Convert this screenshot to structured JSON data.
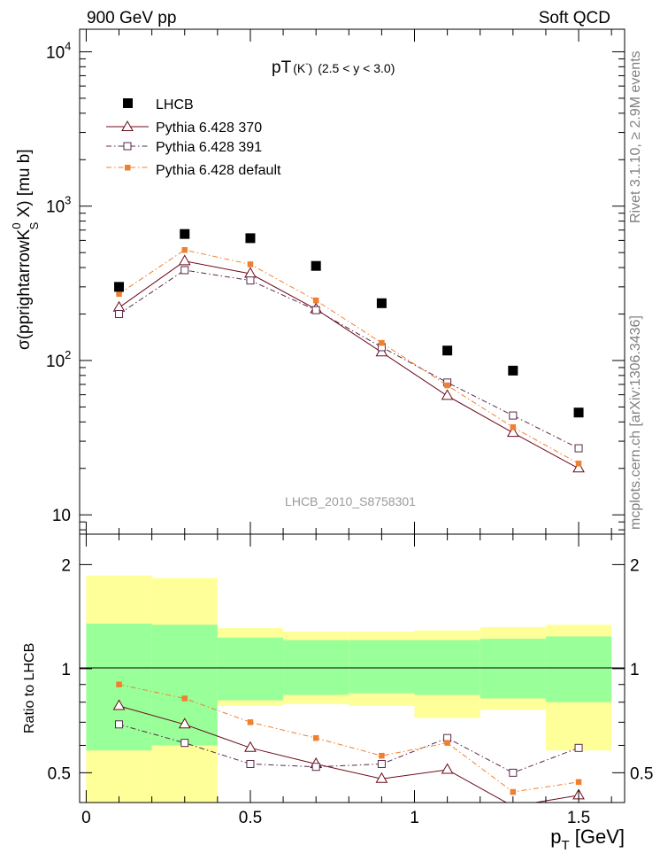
{
  "header": {
    "left": "900 GeV pp",
    "right": "Soft QCD"
  },
  "side_labels": {
    "upper": "Rivet 3.1.10, ≥ 2.9M events",
    "lower": "mcplots.cern.ch [arXiv:1306.3436]"
  },
  "colors": {
    "lhcb": "#000000",
    "p370": "#6b0a1a",
    "p391": "#5a2a4a",
    "pdef": "#f08030",
    "band_yellow": "#ffff99",
    "band_green": "#99ff99"
  },
  "chart_data": [
    {
      "type": "line",
      "panel": "main",
      "title_main": "pT",
      "title_particle": "(K",
      "title_sup": "-",
      "title_rest": ")",
      "title_range": "(2.5 < y < 3.0)",
      "ylabel_parts": {
        "pre": "σ(pprightarrowK",
        "sup": "0",
        "sub": "S",
        "post": " X) [mu b]"
      },
      "yscale": "log",
      "ylim": [
        7.5,
        14000
      ],
      "xlim": [
        -0.02,
        1.64
      ],
      "yticks": [
        10,
        100,
        1000,
        10000
      ],
      "ytick_labels": [
        {
          "base": "10",
          "exp": ""
        },
        {
          "base": "10",
          "exp": "2"
        },
        {
          "base": "10",
          "exp": "3"
        },
        {
          "base": "10",
          "exp": "4"
        }
      ],
      "watermark": "LHCB_2010_S8758301",
      "legend_position": "top-left",
      "x": [
        0.1,
        0.3,
        0.5,
        0.7,
        0.9,
        1.1,
        1.3,
        1.5
      ],
      "series": [
        {
          "name": "LHCB",
          "marker": "square-filled",
          "values": [
            300,
            660,
            620,
            410,
            235,
            116,
            86,
            46
          ]
        },
        {
          "name": "Pythia 6.428 370",
          "marker": "triangle-open",
          "values": [
            220,
            440,
            365,
            215,
            113,
            59,
            34,
            20
          ]
        },
        {
          "name": "Pythia 6.428 391",
          "marker": "square-open",
          "values": [
            200,
            385,
            330,
            212,
            122,
            72,
            44,
            27
          ]
        },
        {
          "name": "Pythia 6.428 default",
          "marker": "square-small",
          "values": [
            270,
            520,
            420,
            245,
            130,
            69,
            37,
            21.5
          ]
        }
      ]
    },
    {
      "type": "line",
      "panel": "ratio",
      "ylabel": "Ratio to LHCB",
      "xlabel_parts": {
        "pre": "p",
        "sub": "T",
        "post": " [GeV]"
      },
      "yscale": "log",
      "ylim": [
        0.41,
        2.45
      ],
      "xlim": [
        -0.02,
        1.64
      ],
      "xticks": [
        0,
        0.5,
        1,
        1.5
      ],
      "xtick_labels": [
        "0",
        "0.5",
        "1",
        "1.5"
      ],
      "yticks": [
        0.5,
        1,
        2
      ],
      "ytick_labels": [
        "0.5",
        "1",
        "2"
      ],
      "x": [
        0.1,
        0.3,
        0.5,
        0.7,
        0.9,
        1.1,
        1.3,
        1.5
      ],
      "bins": [
        [
          0,
          0.2
        ],
        [
          0.2,
          0.4
        ],
        [
          0.4,
          0.6
        ],
        [
          0.6,
          0.8
        ],
        [
          0.8,
          1.0
        ],
        [
          1.0,
          1.2
        ],
        [
          1.2,
          1.4
        ],
        [
          1.4,
          1.6
        ]
      ],
      "band_yellow": [
        [
          0.36,
          1.86
        ],
        [
          0.36,
          1.83
        ],
        [
          0.78,
          1.31
        ],
        [
          0.79,
          1.28
        ],
        [
          0.78,
          1.28
        ],
        [
          0.72,
          1.29
        ],
        [
          0.76,
          1.32
        ],
        [
          0.58,
          1.34
        ]
      ],
      "band_green": [
        [
          0.58,
          1.35
        ],
        [
          0.6,
          1.34
        ],
        [
          0.81,
          1.23
        ],
        [
          0.84,
          1.21
        ],
        [
          0.85,
          1.21
        ],
        [
          0.84,
          1.21
        ],
        [
          0.82,
          1.22
        ],
        [
          0.8,
          1.24
        ]
      ],
      "series": [
        {
          "name": "Pythia 6.428 370",
          "marker": "triangle-open",
          "values": [
            0.78,
            0.69,
            0.59,
            0.53,
            0.48,
            0.51,
            0.4,
            0.43
          ]
        },
        {
          "name": "Pythia 6.428 391",
          "marker": "square-open",
          "values": [
            0.69,
            0.61,
            0.53,
            0.52,
            0.53,
            0.63,
            0.5,
            0.59
          ]
        },
        {
          "name": "Pythia 6.428 default",
          "marker": "square-small",
          "values": [
            0.9,
            0.82,
            0.7,
            0.63,
            0.56,
            0.61,
            0.44,
            0.47
          ]
        }
      ]
    }
  ]
}
